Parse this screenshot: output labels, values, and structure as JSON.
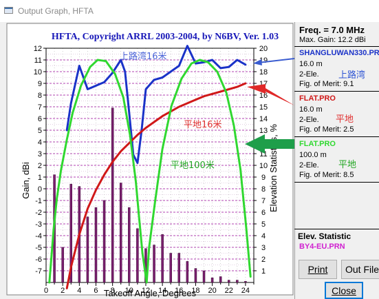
{
  "window": {
    "title": "Output Graph, HFTA"
  },
  "chart_data": {
    "type": "bar+line",
    "title": "HFTA, Copyright ARRL 2003-2004, by N6BV, Ver. 1.03",
    "xlabel": "Takeoff Angle, Degrees",
    "ylabel_left": "Gain, dBi",
    "ylabel_right": "Elevation Statistics, %",
    "xlim": [
      0,
      25
    ],
    "xticks": [
      0,
      2,
      4,
      6,
      8,
      10,
      12,
      14,
      16,
      18,
      20,
      22,
      24
    ],
    "ylim_left": [
      -8,
      12
    ],
    "ylim_right": [
      0,
      20
    ],
    "grid": true,
    "bars": {
      "name": "BY4-EU.PRN",
      "x": [
        1,
        2,
        3,
        4,
        5,
        6,
        7,
        8,
        9,
        10,
        11,
        12,
        13,
        14,
        15,
        16,
        17,
        18,
        19,
        20,
        21,
        22,
        23,
        24
      ],
      "values": [
        9.2,
        3.0,
        8.4,
        8.2,
        5.6,
        6.4,
        7.0,
        14.9,
        8.5,
        6.4,
        4.6,
        2.9,
        3.2,
        4.1,
        2.5,
        2.5,
        1.8,
        1.2,
        1.0,
        0.4,
        0.5,
        0.2,
        0.2,
        0.1
      ]
    },
    "series": [
      {
        "name": "SHANGLUWAN330.PRN",
        "color": "#1a32c8",
        "x": [
          2.5,
          3,
          4,
          5,
          6,
          7,
          8,
          9,
          9.5,
          10,
          10.5,
          11,
          11.5,
          12,
          13,
          14,
          15,
          16,
          17,
          18,
          19,
          20,
          21,
          22,
          23,
          24
        ],
        "y": [
          5.0,
          7.3,
          10.5,
          8.5,
          8.8,
          9.1,
          9.9,
          11.0,
          10.0,
          6.5,
          2.9,
          2.2,
          5.0,
          8.5,
          9.3,
          9.5,
          10.0,
          10.5,
          12.2,
          10.7,
          10.8,
          11.0,
          10.3,
          10.4,
          11.0,
          10.6
        ]
      },
      {
        "name": "FLAT.PRO",
        "color": "#d01818",
        "x": [
          2.5,
          3,
          4,
          5,
          6,
          7,
          8,
          9,
          10,
          11,
          12,
          13,
          14,
          15,
          16,
          17,
          18,
          19,
          20,
          21,
          22,
          23,
          24
        ],
        "y": [
          -8.5,
          -6.7,
          -3.9,
          -1.7,
          -0.1,
          1.2,
          2.3,
          3.2,
          3.9,
          4.6,
          5.2,
          5.7,
          6.2,
          6.6,
          7.0,
          7.3,
          7.6,
          7.9,
          8.1,
          8.3,
          8.5,
          8.7,
          9.0
        ]
      },
      {
        "name": "FLAT.PRO",
        "color": "#30d830",
        "x": [
          0.4,
          0.9,
          1.3,
          1.8,
          2.5,
          3.2,
          4.2,
          5.3,
          6.2,
          7.2,
          8.3,
          9.3,
          10.1,
          10.8,
          11.2,
          11.6,
          12.1,
          12.4,
          13.1,
          14.0,
          15.1,
          16.3,
          17.5,
          18.5,
          19.5,
          20.6,
          21.7,
          22.6,
          23.4,
          24.1,
          24.6
        ],
        "y": [
          -8.0,
          -3.5,
          -0.8,
          1.6,
          4.2,
          6.5,
          8.8,
          10.4,
          11.0,
          10.9,
          9.8,
          7.8,
          4.6,
          0.6,
          -2.5,
          -5.5,
          -8.0,
          -5.0,
          -1.2,
          3.4,
          7.1,
          9.4,
          10.7,
          11.0,
          10.8,
          10.0,
          8.2,
          5.4,
          1.6,
          -3.4,
          -7.5
        ]
      }
    ],
    "annotations": [
      "上路湾16米",
      "平地16米",
      "平地100米"
    ],
    "info_panel": {
      "freq": "Freq. = 7.0 MHz",
      "max_gain": "Max. Gain: 12.2 dBi",
      "entries": [
        {
          "file": "SHANGLUWAN330.PRN",
          "height": "16.0 m",
          "type": "2-Ele.",
          "merit": "Fig. of Merit:  9.1",
          "color": "#1a32c8",
          "cn": "上路湾",
          "cn_color": "#2f55d4"
        },
        {
          "file": "FLAT.PRO",
          "height": "16.0 m",
          "type": "2-Ele.",
          "merit": "Fig. of Merit:  2.5",
          "color": "#d01818",
          "cn": "平地",
          "cn_color": "#e03030"
        },
        {
          "file": "FLAT.PRO",
          "height": "100.0 m",
          "type": "2-Ele.",
          "merit": "Fig. of Merit:  8.5",
          "color": "#30d830",
          "cn": "平地",
          "cn_color": "#22a622"
        }
      ],
      "elev_title": "Elev. Statistic",
      "elev_file": "BY4-EU.PRN"
    },
    "buttons": {
      "print": "Print",
      "out_file": "Out File",
      "close": "Close"
    }
  }
}
